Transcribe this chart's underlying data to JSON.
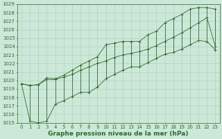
{
  "xlabel": "Graphe pression niveau de la mer (hPa)",
  "hours": [
    0,
    1,
    2,
    3,
    4,
    5,
    6,
    7,
    8,
    9,
    10,
    11,
    12,
    13,
    14,
    15,
    16,
    17,
    18,
    19,
    20,
    21,
    22,
    23
  ],
  "max_pressure": [
    1019.6,
    1019.4,
    1019.5,
    1020.3,
    1020.2,
    1020.6,
    1021.2,
    1021.8,
    1022.3,
    1022.8,
    1024.2,
    1024.4,
    1024.6,
    1024.6,
    1024.6,
    1025.4,
    1025.8,
    1026.8,
    1027.3,
    1027.8,
    1028.4,
    1028.6,
    1028.6,
    1028.4
  ],
  "mean_pressure": [
    1019.6,
    1019.4,
    1019.5,
    1020.1,
    1020.1,
    1020.4,
    1020.7,
    1021.2,
    1021.6,
    1022.0,
    1022.3,
    1022.7,
    1023.0,
    1023.2,
    1023.4,
    1023.7,
    1024.1,
    1024.6,
    1025.1,
    1025.6,
    1026.2,
    1026.8,
    1027.4,
    1024.0
  ],
  "min_pressure": [
    1019.6,
    1015.2,
    1015.0,
    1015.2,
    1017.2,
    1017.6,
    1018.1,
    1018.6,
    1018.6,
    1019.2,
    1020.2,
    1020.7,
    1021.2,
    1021.6,
    1021.6,
    1022.1,
    1022.6,
    1023.1,
    1023.3,
    1023.7,
    1024.2,
    1024.7,
    1024.6,
    1023.6
  ],
  "ylim_low": 1015,
  "ylim_high": 1029,
  "yticks": [
    1015,
    1016,
    1017,
    1018,
    1019,
    1020,
    1021,
    1022,
    1023,
    1024,
    1025,
    1026,
    1027,
    1028,
    1029
  ],
  "line_color": "#2d6a2d",
  "bg_color": "#cce8d8",
  "grid_color": "#aaccbb",
  "xlabel_fontsize": 6.5,
  "tick_fontsize": 5.0,
  "fig_width": 3.2,
  "fig_height": 2.0,
  "dpi": 100
}
